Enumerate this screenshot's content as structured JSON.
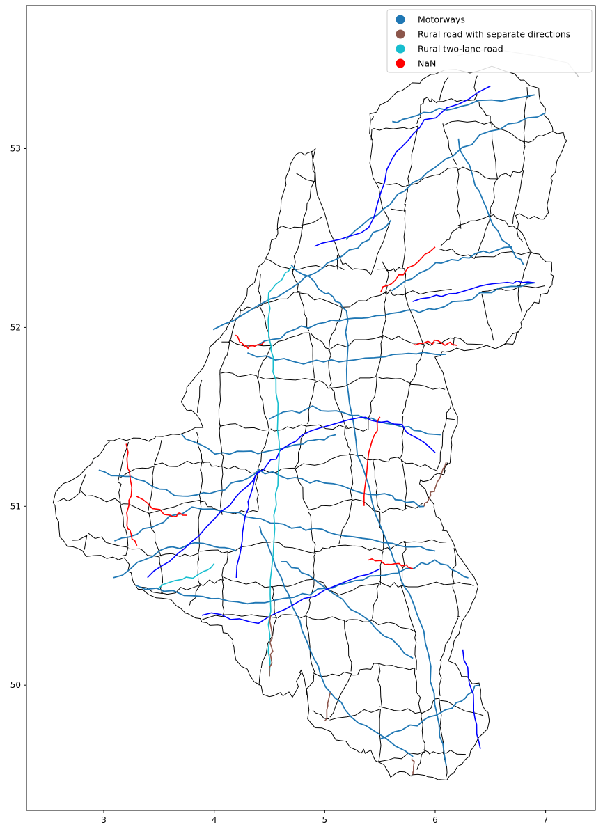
{
  "chart_data": {
    "type": "map",
    "title": "",
    "xlabel": "",
    "ylabel": "",
    "xlim": [
      2.3,
      7.45
    ],
    "ylim": [
      49.3,
      53.8
    ],
    "x_ticks": [
      3,
      4,
      5,
      6,
      7
    ],
    "x_tick_labels": [
      "3",
      "4",
      "5",
      "6",
      "7"
    ],
    "y_ticks": [
      50,
      51,
      52,
      53
    ],
    "y_tick_labels": [
      "50",
      "51",
      "52",
      "53"
    ],
    "legend": {
      "placement": "top-right",
      "entries": [
        {
          "label": "Motorways",
          "color": "#1f77b4"
        },
        {
          "label": "Rural road with separate directions",
          "color": "#8c564b"
        },
        {
          "label": "Rural two-lane road",
          "color": "#17becf"
        },
        {
          "label": "NaN",
          "color": "#ff0000"
        }
      ]
    },
    "colors": {
      "region_border": "#000000",
      "motorway": "#1f77b4",
      "rural_separate": "#8c564b",
      "rural_two_lane": "#17becf",
      "nan": "#ff0000",
      "highlight_blue": "#0000ff",
      "external_outline": "#bbbbbb"
    },
    "outline": [
      [
        3.05,
        51.36
      ],
      [
        3.33,
        51.38
      ],
      [
        3.48,
        51.38
      ],
      [
        3.9,
        51.45
      ],
      [
        3.7,
        51.6
      ],
      [
        3.9,
        51.8
      ],
      [
        4.0,
        51.92
      ],
      [
        4.12,
        52.0
      ],
      [
        4.25,
        52.15
      ],
      [
        4.45,
        52.38
      ],
      [
        4.55,
        52.5
      ],
      [
        4.62,
        52.75
      ],
      [
        4.72,
        52.95
      ],
      [
        4.9,
        53.0
      ],
      [
        4.95,
        52.7
      ],
      [
        5.15,
        52.35
      ],
      [
        5.42,
        52.3
      ],
      [
        5.6,
        52.58
      ],
      [
        5.42,
        52.88
      ],
      [
        5.42,
        53.2
      ],
      [
        5.7,
        53.33
      ],
      [
        6.0,
        53.42
      ],
      [
        6.6,
        53.45
      ],
      [
        6.92,
        53.35
      ],
      [
        7.05,
        53.12
      ],
      [
        7.2,
        53.05
      ],
      [
        7.06,
        52.85
      ],
      [
        7.0,
        52.62
      ],
      [
        6.72,
        52.62
      ],
      [
        6.85,
        52.43
      ],
      [
        7.07,
        52.35
      ],
      [
        7.05,
        52.22
      ],
      [
        6.82,
        52.08
      ],
      [
        6.72,
        51.9
      ],
      [
        6.18,
        51.88
      ],
      [
        6.0,
        51.85
      ],
      [
        6.2,
        51.5
      ],
      [
        6.12,
        51.25
      ],
      [
        6.08,
        51.18
      ],
      [
        5.85,
        51.15
      ],
      [
        6.0,
        50.98
      ],
      [
        6.1,
        50.85
      ],
      [
        6.4,
        50.55
      ],
      [
        6.2,
        50.3
      ],
      [
        6.13,
        50.13
      ],
      [
        6.38,
        50.0
      ],
      [
        6.5,
        49.8
      ],
      [
        6.3,
        49.6
      ],
      [
        6.1,
        49.46
      ],
      [
        5.85,
        49.5
      ],
      [
        5.6,
        49.5
      ],
      [
        5.4,
        49.62
      ],
      [
        5.25,
        49.65
      ],
      [
        4.85,
        49.8
      ],
      [
        4.8,
        50.1
      ],
      [
        4.72,
        49.95
      ],
      [
        4.45,
        49.95
      ],
      [
        4.2,
        50.15
      ],
      [
        4.13,
        50.3
      ],
      [
        3.9,
        50.35
      ],
      [
        3.65,
        50.45
      ],
      [
        3.3,
        50.55
      ],
      [
        3.2,
        50.7
      ],
      [
        2.85,
        50.72
      ],
      [
        2.6,
        50.82
      ],
      [
        2.55,
        51.08
      ],
      [
        2.85,
        51.2
      ],
      [
        3.05,
        51.36
      ]
    ]
  }
}
